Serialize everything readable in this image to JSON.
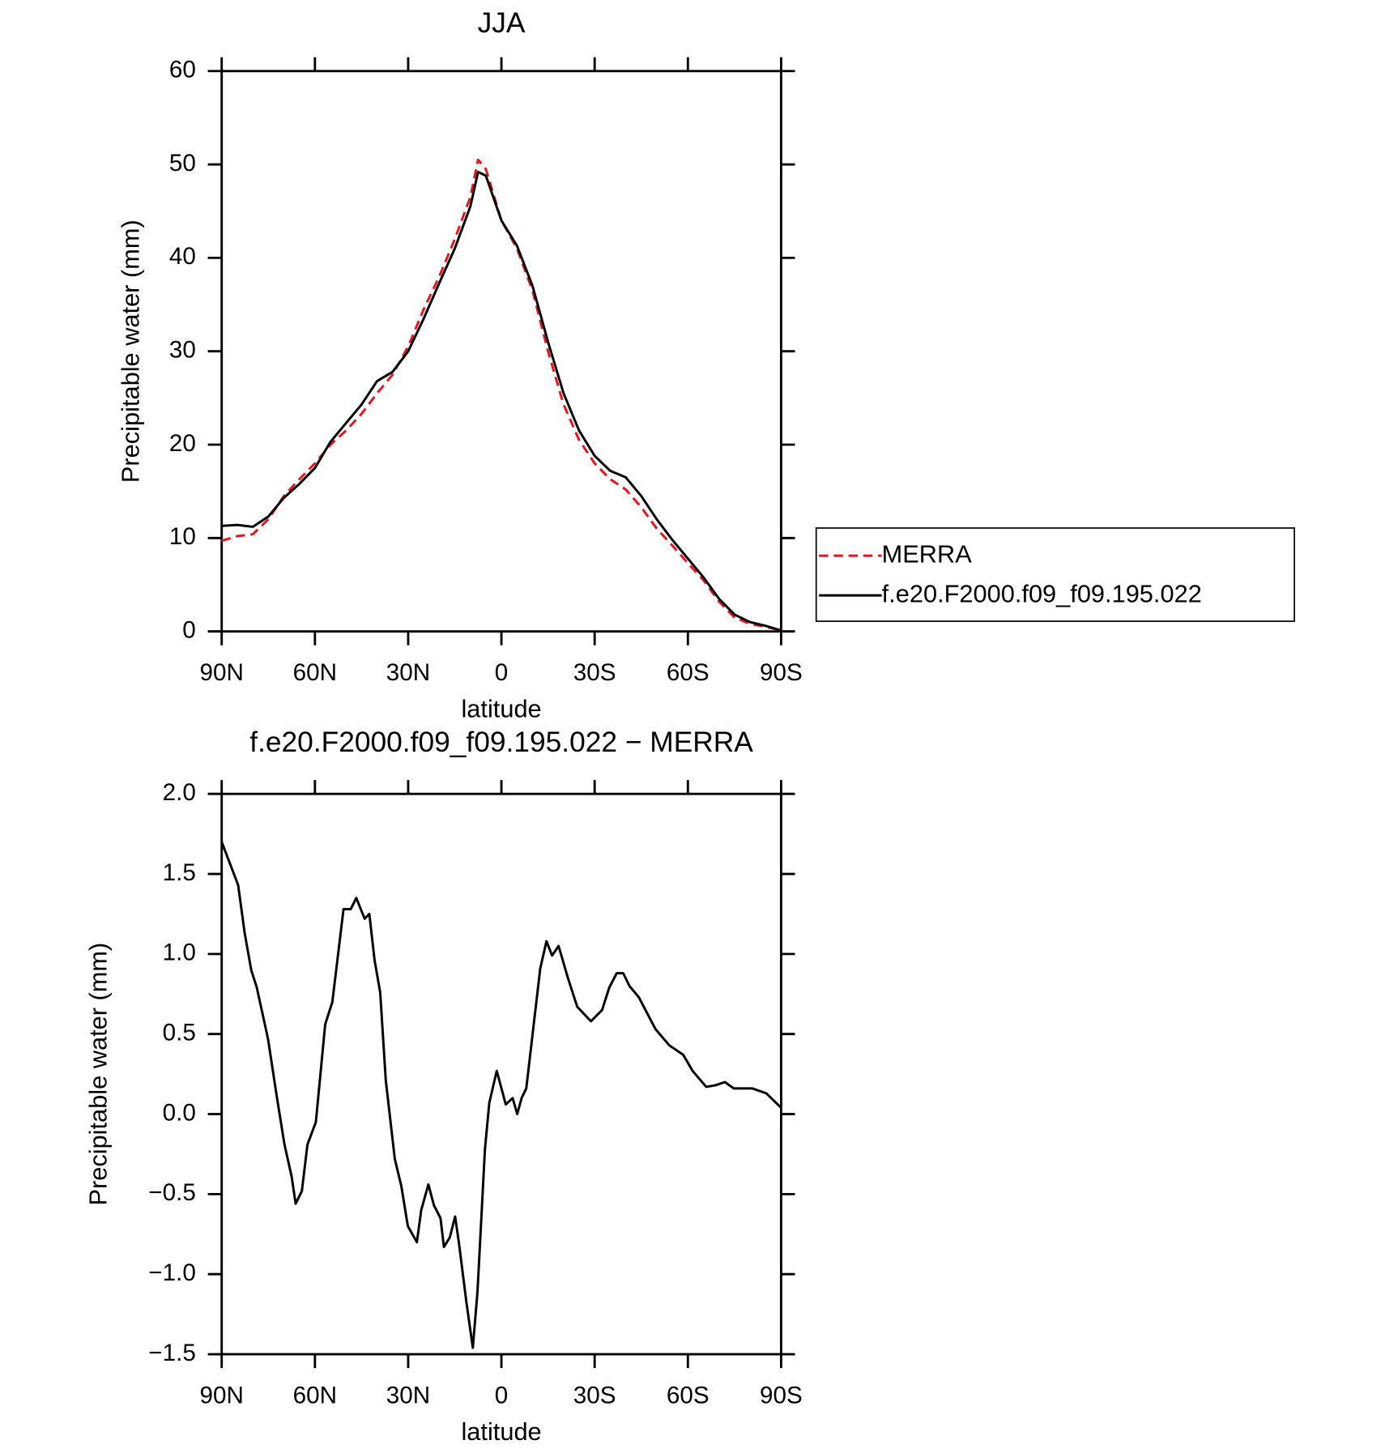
{
  "chart_data": [
    {
      "type": "line",
      "title": "JJA",
      "xlabel": "latitude",
      "ylabel": "Precipitable water (mm)",
      "x": [
        90,
        85,
        80,
        75,
        70,
        65,
        60,
        55,
        50,
        45,
        40,
        35,
        30,
        25,
        20,
        15,
        10,
        7.5,
        5,
        0,
        -5,
        -10,
        -15,
        -20,
        -25,
        -30,
        -35,
        -40,
        -45,
        -50,
        -55,
        -60,
        -65,
        -70,
        -75,
        -80,
        -85,
        -90
      ],
      "series": [
        {
          "name": "MERRA",
          "color": "#e8141c",
          "style": "dashed",
          "values": [
            9.7,
            10.2,
            10.4,
            12.0,
            14.5,
            16.3,
            18.0,
            20.0,
            21.5,
            23.3,
            25.5,
            27.5,
            30.5,
            34.5,
            38.0,
            42.0,
            46.5,
            50.5,
            49.5,
            44.0,
            41.0,
            36.5,
            30.0,
            24.3,
            20.5,
            18.0,
            16.3,
            15.2,
            13.3,
            11.0,
            9.2,
            7.3,
            5.5,
            3.2,
            1.5,
            0.8,
            0.5,
            0.1
          ]
        },
        {
          "name": "f.e20.F2000.f09_f09.195.022",
          "color": "#000000",
          "style": "solid",
          "values": [
            11.3,
            11.4,
            11.2,
            12.3,
            14.3,
            15.8,
            17.5,
            20.3,
            22.3,
            24.3,
            26.8,
            27.8,
            30.0,
            33.5,
            37.3,
            41.0,
            45.5,
            49.2,
            48.8,
            44.0,
            41.3,
            37.0,
            31.0,
            25.5,
            21.5,
            18.8,
            17.2,
            16.5,
            14.5,
            12.0,
            9.8,
            7.8,
            5.8,
            3.5,
            1.8,
            1.0,
            0.6,
            0.1
          ]
        }
      ],
      "xlim": [
        90,
        -90
      ],
      "xticks": [
        {
          "value": 90,
          "label": "90N"
        },
        {
          "value": 60,
          "label": "60N"
        },
        {
          "value": 30,
          "label": "30N"
        },
        0,
        {
          "value": -30,
          "label": "30S"
        },
        {
          "value": -60,
          "label": "60S"
        },
        {
          "value": -90,
          "label": "90S"
        }
      ],
      "ylim": [
        0,
        60
      ],
      "yticks": [
        0,
        10,
        20,
        30,
        40,
        50,
        60
      ],
      "legend": "right"
    },
    {
      "type": "line",
      "title": "f.e20.F2000.f09_f09.195.022 − MERRA",
      "xlabel": "latitude",
      "ylabel": "Precipitable water (mm)",
      "x": [
        90,
        84.7,
        82.6,
        80.5,
        78.7,
        75.1,
        72.2,
        69.8,
        67.5,
        66.2,
        64.2,
        62.4,
        59.7,
        56.7,
        54.4,
        50.8,
        48.5,
        46.7,
        44.0,
        42.5,
        40.8,
        39.0,
        37.2,
        34.3,
        32.2,
        30.1,
        27.2,
        25.8,
        23.5,
        21.7,
        19.6,
        18.5,
        16.6,
        14.9,
        13.7,
        11.3,
        9.2,
        7.7,
        5.3,
        3.9,
        1.5,
        -1.4,
        -3.6,
        -5.1,
        -6.5,
        -8.0,
        -10.4,
        -12.5,
        -14.5,
        -16.3,
        -18.4,
        -21.4,
        -24.4,
        -28.8,
        -32.4,
        -34.7,
        -37.1,
        -39.2,
        -41.2,
        -44.2,
        -49.6,
        -54.0,
        -58.5,
        -61.5,
        -65.9,
        -68.9,
        -71.9,
        -74.8,
        -80.8,
        -85.2,
        -90
      ],
      "values": [
        1.7,
        1.43,
        1.13,
        0.9,
        0.79,
        0.47,
        0.1,
        -0.19,
        -0.39,
        -0.56,
        -0.48,
        -0.19,
        -0.05,
        0.56,
        0.7,
        1.28,
        1.28,
        1.35,
        1.22,
        1.25,
        0.96,
        0.76,
        0.21,
        -0.28,
        -0.45,
        -0.7,
        -0.8,
        -0.6,
        -0.44,
        -0.57,
        -0.65,
        -0.83,
        -0.77,
        -0.64,
        -0.8,
        -1.17,
        -1.46,
        -1.11,
        -0.22,
        0.07,
        0.27,
        0.06,
        0.1,
        0.0,
        0.1,
        0.16,
        0.56,
        0.91,
        1.08,
        0.99,
        1.05,
        0.85,
        0.67,
        0.58,
        0.65,
        0.79,
        0.88,
        0.88,
        0.8,
        0.73,
        0.53,
        0.43,
        0.37,
        0.27,
        0.17,
        0.18,
        0.2,
        0.16,
        0.16,
        0.13,
        0.04
      ],
      "color": "#000000",
      "xlim": [
        90,
        -90
      ],
      "xticks": [
        {
          "value": 90,
          "label": "90N"
        },
        {
          "value": 60,
          "label": "60N"
        },
        {
          "value": 30,
          "label": "30N"
        },
        0,
        {
          "value": -30,
          "label": "30S"
        },
        {
          "value": -60,
          "label": "60S"
        },
        {
          "value": -90,
          "label": "90S"
        }
      ],
      "ylim": [
        -1.5,
        2.0
      ],
      "yticks": [
        {
          "value": -1.5,
          "label": "−1.5"
        },
        {
          "value": -1.0,
          "label": "−1.0"
        },
        {
          "value": -0.5,
          "label": "−0.5"
        },
        {
          "value": 0,
          "label": "0.0"
        },
        0.5,
        {
          "value": 1,
          "label": "1.0"
        },
        1.5,
        {
          "value": 2,
          "label": "2.0"
        }
      ]
    }
  ]
}
